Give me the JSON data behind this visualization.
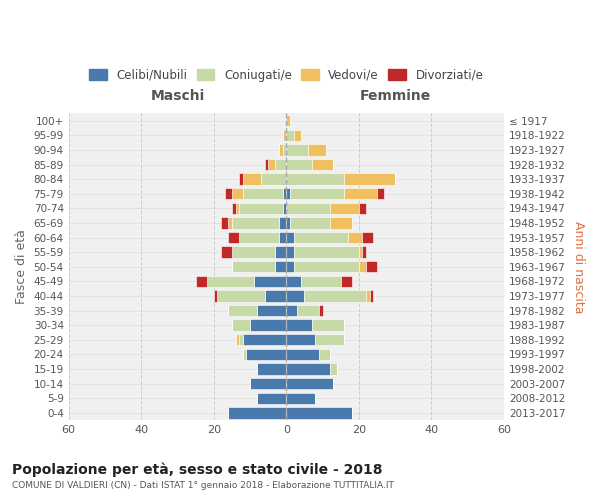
{
  "age_groups": [
    "0-4",
    "5-9",
    "10-14",
    "15-19",
    "20-24",
    "25-29",
    "30-34",
    "35-39",
    "40-44",
    "45-49",
    "50-54",
    "55-59",
    "60-64",
    "65-69",
    "70-74",
    "75-79",
    "80-84",
    "85-89",
    "90-94",
    "95-99",
    "100+"
  ],
  "birth_years": [
    "2013-2017",
    "2008-2012",
    "2003-2007",
    "1998-2002",
    "1993-1997",
    "1988-1992",
    "1983-1987",
    "1978-1982",
    "1973-1977",
    "1968-1972",
    "1963-1967",
    "1958-1962",
    "1953-1957",
    "1948-1952",
    "1943-1947",
    "1938-1942",
    "1933-1937",
    "1928-1932",
    "1923-1927",
    "1918-1922",
    "≤ 1917"
  ],
  "colors": {
    "celibi": "#4a7aac",
    "coniugati": "#c8d9a8",
    "vedovi": "#f0c060",
    "divorziati": "#c0282a"
  },
  "maschi": {
    "celibi": [
      16,
      8,
      10,
      8,
      11,
      12,
      10,
      8,
      6,
      9,
      3,
      3,
      2,
      2,
      1,
      1,
      0,
      0,
      0,
      0,
      0
    ],
    "coniugati": [
      0,
      0,
      0,
      0,
      1,
      1,
      5,
      8,
      13,
      13,
      12,
      12,
      11,
      13,
      12,
      11,
      7,
      3,
      1,
      0,
      0
    ],
    "vedovi": [
      0,
      0,
      0,
      0,
      0,
      1,
      0,
      0,
      0,
      0,
      0,
      0,
      0,
      1,
      1,
      3,
      5,
      2,
      1,
      1,
      0
    ],
    "divorziati": [
      0,
      0,
      0,
      0,
      0,
      0,
      0,
      0,
      1,
      3,
      0,
      3,
      3,
      2,
      1,
      2,
      1,
      1,
      0,
      0,
      0
    ]
  },
  "femmine": {
    "celibi": [
      18,
      8,
      13,
      12,
      9,
      8,
      7,
      3,
      5,
      4,
      2,
      2,
      2,
      1,
      0,
      1,
      0,
      0,
      0,
      0,
      0
    ],
    "coniugati": [
      0,
      0,
      0,
      2,
      3,
      8,
      9,
      6,
      17,
      11,
      18,
      18,
      15,
      11,
      12,
      15,
      16,
      7,
      6,
      2,
      0
    ],
    "vedovi": [
      0,
      0,
      0,
      0,
      0,
      0,
      0,
      0,
      1,
      0,
      2,
      1,
      4,
      6,
      8,
      9,
      14,
      6,
      5,
      2,
      1
    ],
    "divorziati": [
      0,
      0,
      0,
      0,
      0,
      0,
      0,
      1,
      1,
      3,
      3,
      1,
      3,
      0,
      2,
      2,
      0,
      0,
      0,
      0,
      0
    ]
  },
  "xlim": 60,
  "title": "Popolazione per età, sesso e stato civile - 2018",
  "subtitle": "COMUNE DI VALDIERI (CN) - Dati ISTAT 1° gennaio 2018 - Elaborazione TUTTITALIA.IT",
  "ylabel_left": "Fasce di età",
  "ylabel_right": "Anni di nascita",
  "xlabel_left": "Maschi",
  "xlabel_right": "Femmine",
  "bg_color": "#f0f0f0",
  "grid_color": "#cccccc"
}
